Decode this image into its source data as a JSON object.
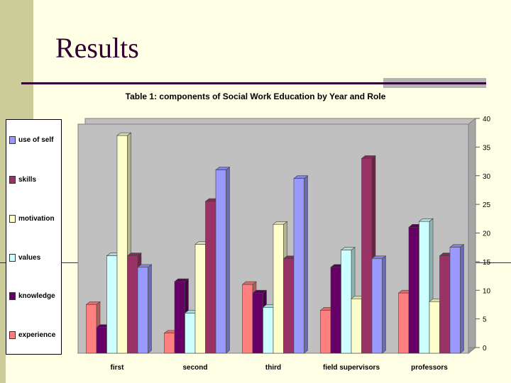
{
  "slide": {
    "title": "Results"
  },
  "colors": {
    "background": "#ffffe5",
    "side_band": "#cccc99",
    "title": "#330033"
  },
  "chart_data": {
    "type": "bar",
    "title": "Table 1: components of Social Work Education by Year and Role",
    "categories": [
      "first",
      "second",
      "third",
      "field supervisors",
      "professors"
    ],
    "series": [
      {
        "name": "experience",
        "color": "#ff8080",
        "values": [
          8.5,
          3.5,
          12,
          7.5,
          10.5
        ]
      },
      {
        "name": "knowledge",
        "color": "#660066",
        "values": [
          4.5,
          12.5,
          10.5,
          15,
          22
        ]
      },
      {
        "name": "values",
        "color": "#ccffff",
        "values": [
          17,
          7,
          8,
          18,
          23
        ]
      },
      {
        "name": "motivation",
        "color": "#ffffcc",
        "values": [
          38,
          19,
          22.5,
          9.5,
          9
        ]
      },
      {
        "name": "skills",
        "color": "#993366",
        "values": [
          17,
          26.5,
          16.5,
          34,
          17
        ]
      },
      {
        "name": "use of self",
        "color": "#9999ff",
        "values": [
          15,
          32,
          30.5,
          16.5,
          18.5
        ]
      }
    ],
    "legend_order": [
      "use of self",
      "skills",
      "motivation",
      "values",
      "knowledge",
      "experience"
    ],
    "y_ticks": [
      0,
      5,
      10,
      15,
      20,
      25,
      30,
      35,
      40
    ],
    "ylim": [
      0,
      40
    ],
    "legend": "left",
    "grid": false
  }
}
